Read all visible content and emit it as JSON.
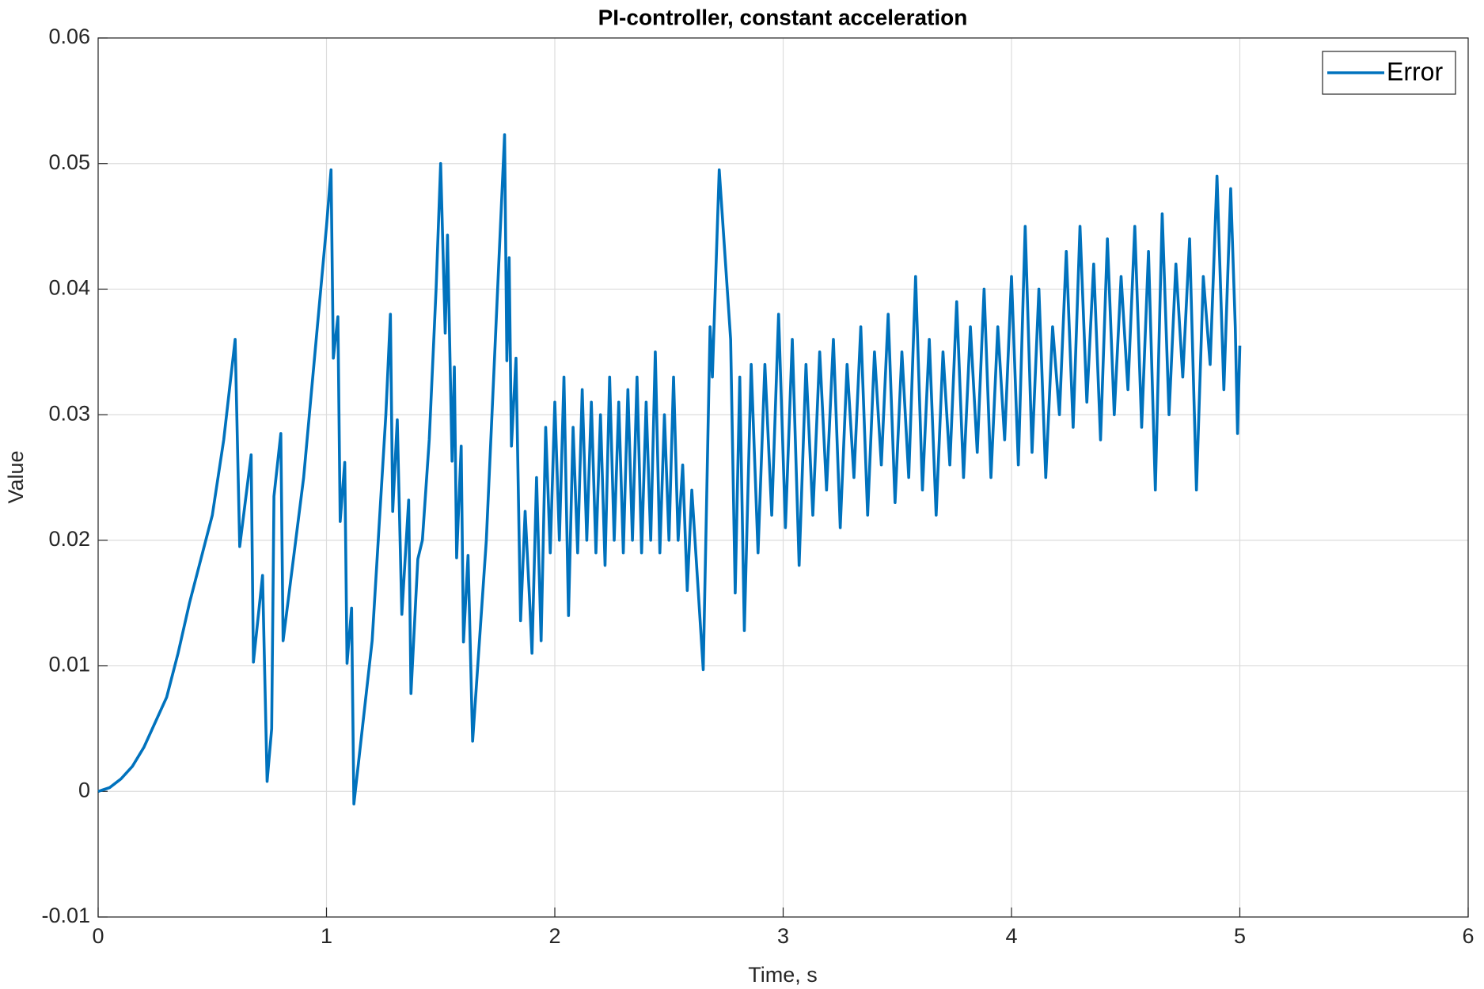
{
  "chart_data": {
    "type": "line",
    "title": "PI-controller, constant acceleration",
    "x_label": "Time, s",
    "y_label": "Value",
    "x": [
      0,
      0.05,
      0.1,
      0.15,
      0.2,
      0.25,
      0.3,
      0.35,
      0.4,
      0.45,
      0.5,
      0.55,
      0.6,
      0.62,
      0.67,
      0.68,
      0.72,
      0.74,
      0.76,
      0.77,
      0.8,
      0.81,
      0.9,
      1.0,
      1.02,
      1.03,
      1.05,
      1.06,
      1.08,
      1.09,
      1.11,
      1.12,
      1.2,
      1.26,
      1.28,
      1.29,
      1.31,
      1.33,
      1.36,
      1.37,
      1.4,
      1.42,
      1.45,
      1.48,
      1.5,
      1.52,
      1.53,
      1.55,
      1.56,
      1.57,
      1.59,
      1.6,
      1.62,
      1.64,
      1.7,
      1.78,
      1.79,
      1.8,
      1.81,
      1.83,
      1.85,
      1.87,
      1.89,
      1.9,
      1.92,
      1.94,
      1.96,
      1.98,
      2.0,
      2.02,
      2.04,
      2.06,
      2.08,
      2.1,
      2.12,
      2.14,
      2.16,
      2.18,
      2.2,
      2.22,
      2.24,
      2.26,
      2.28,
      2.3,
      2.32,
      2.34,
      2.36,
      2.38,
      2.4,
      2.42,
      2.44,
      2.46,
      2.48,
      2.5,
      2.52,
      2.54,
      2.56,
      2.58,
      2.6,
      2.65,
      2.68,
      2.69,
      2.72,
      2.77,
      2.79,
      2.81,
      2.83,
      2.86,
      2.89,
      2.92,
      2.95,
      2.98,
      3.01,
      3.04,
      3.07,
      3.1,
      3.13,
      3.16,
      3.19,
      3.22,
      3.25,
      3.28,
      3.31,
      3.34,
      3.37,
      3.4,
      3.43,
      3.46,
      3.49,
      3.52,
      3.55,
      3.58,
      3.61,
      3.64,
      3.67,
      3.7,
      3.73,
      3.76,
      3.79,
      3.82,
      3.85,
      3.88,
      3.91,
      3.94,
      3.97,
      4.0,
      4.03,
      4.06,
      4.09,
      4.12,
      4.15,
      4.18,
      4.21,
      4.24,
      4.27,
      4.3,
      4.33,
      4.36,
      4.39,
      4.42,
      4.45,
      4.48,
      4.51,
      4.54,
      4.57,
      4.6,
      4.63,
      4.66,
      4.69,
      4.72,
      4.75,
      4.78,
      4.81,
      4.84,
      4.87,
      4.9,
      4.93,
      4.96,
      4.98,
      4.99,
      5.0
    ],
    "series": [
      {
        "name": "Error",
        "color": "#0072bd",
        "values": [
          0,
          0.0003,
          0.001,
          0.002,
          0.0035,
          0.0055,
          0.0075,
          0.011,
          0.015,
          0.0185,
          0.022,
          0.028,
          0.036,
          0.0195,
          0.0268,
          0.0103,
          0.0172,
          0.0008,
          0.005,
          0.0235,
          0.0285,
          0.012,
          0.025,
          0.045,
          0.0495,
          0.0345,
          0.0378,
          0.0215,
          0.0262,
          0.0102,
          0.0146,
          -0.001,
          0.012,
          0.03,
          0.038,
          0.0223,
          0.0296,
          0.0141,
          0.0232,
          0.0078,
          0.0185,
          0.02,
          0.028,
          0.04,
          0.05,
          0.0365,
          0.0443,
          0.0263,
          0.0338,
          0.0186,
          0.0275,
          0.0119,
          0.0188,
          0.004,
          0.02,
          0.0523,
          0.0343,
          0.0425,
          0.0275,
          0.0345,
          0.0136,
          0.0223,
          0.0151,
          0.011,
          0.025,
          0.012,
          0.029,
          0.019,
          0.031,
          0.02,
          0.033,
          0.014,
          0.029,
          0.019,
          0.032,
          0.02,
          0.031,
          0.019,
          0.03,
          0.018,
          0.033,
          0.02,
          0.031,
          0.019,
          0.032,
          0.02,
          0.033,
          0.019,
          0.031,
          0.02,
          0.035,
          0.019,
          0.03,
          0.02,
          0.033,
          0.02,
          0.026,
          0.016,
          0.024,
          0.0097,
          0.037,
          0.033,
          0.0495,
          0.036,
          0.0158,
          0.033,
          0.0128,
          0.034,
          0.019,
          0.034,
          0.022,
          0.038,
          0.021,
          0.036,
          0.018,
          0.034,
          0.022,
          0.035,
          0.024,
          0.036,
          0.021,
          0.034,
          0.025,
          0.037,
          0.022,
          0.035,
          0.026,
          0.038,
          0.023,
          0.035,
          0.025,
          0.041,
          0.024,
          0.036,
          0.022,
          0.035,
          0.026,
          0.039,
          0.025,
          0.037,
          0.027,
          0.04,
          0.025,
          0.037,
          0.028,
          0.041,
          0.026,
          0.045,
          0.027,
          0.04,
          0.025,
          0.037,
          0.03,
          0.043,
          0.029,
          0.045,
          0.031,
          0.042,
          0.028,
          0.044,
          0.03,
          0.041,
          0.032,
          0.045,
          0.029,
          0.043,
          0.024,
          0.046,
          0.03,
          0.042,
          0.033,
          0.044,
          0.024,
          0.041,
          0.034,
          0.049,
          0.032,
          0.048,
          0.037,
          0.0285,
          0.0355
        ]
      }
    ],
    "xlim": [
      0,
      6
    ],
    "xticks": [
      0,
      1,
      2,
      3,
      4,
      5,
      6
    ],
    "ylim": [
      -0.01,
      0.06
    ],
    "yticks": [
      -0.01,
      0,
      0.01,
      0.02,
      0.03,
      0.04,
      0.05,
      0.06
    ],
    "grid": true,
    "legend": "upper right"
  }
}
